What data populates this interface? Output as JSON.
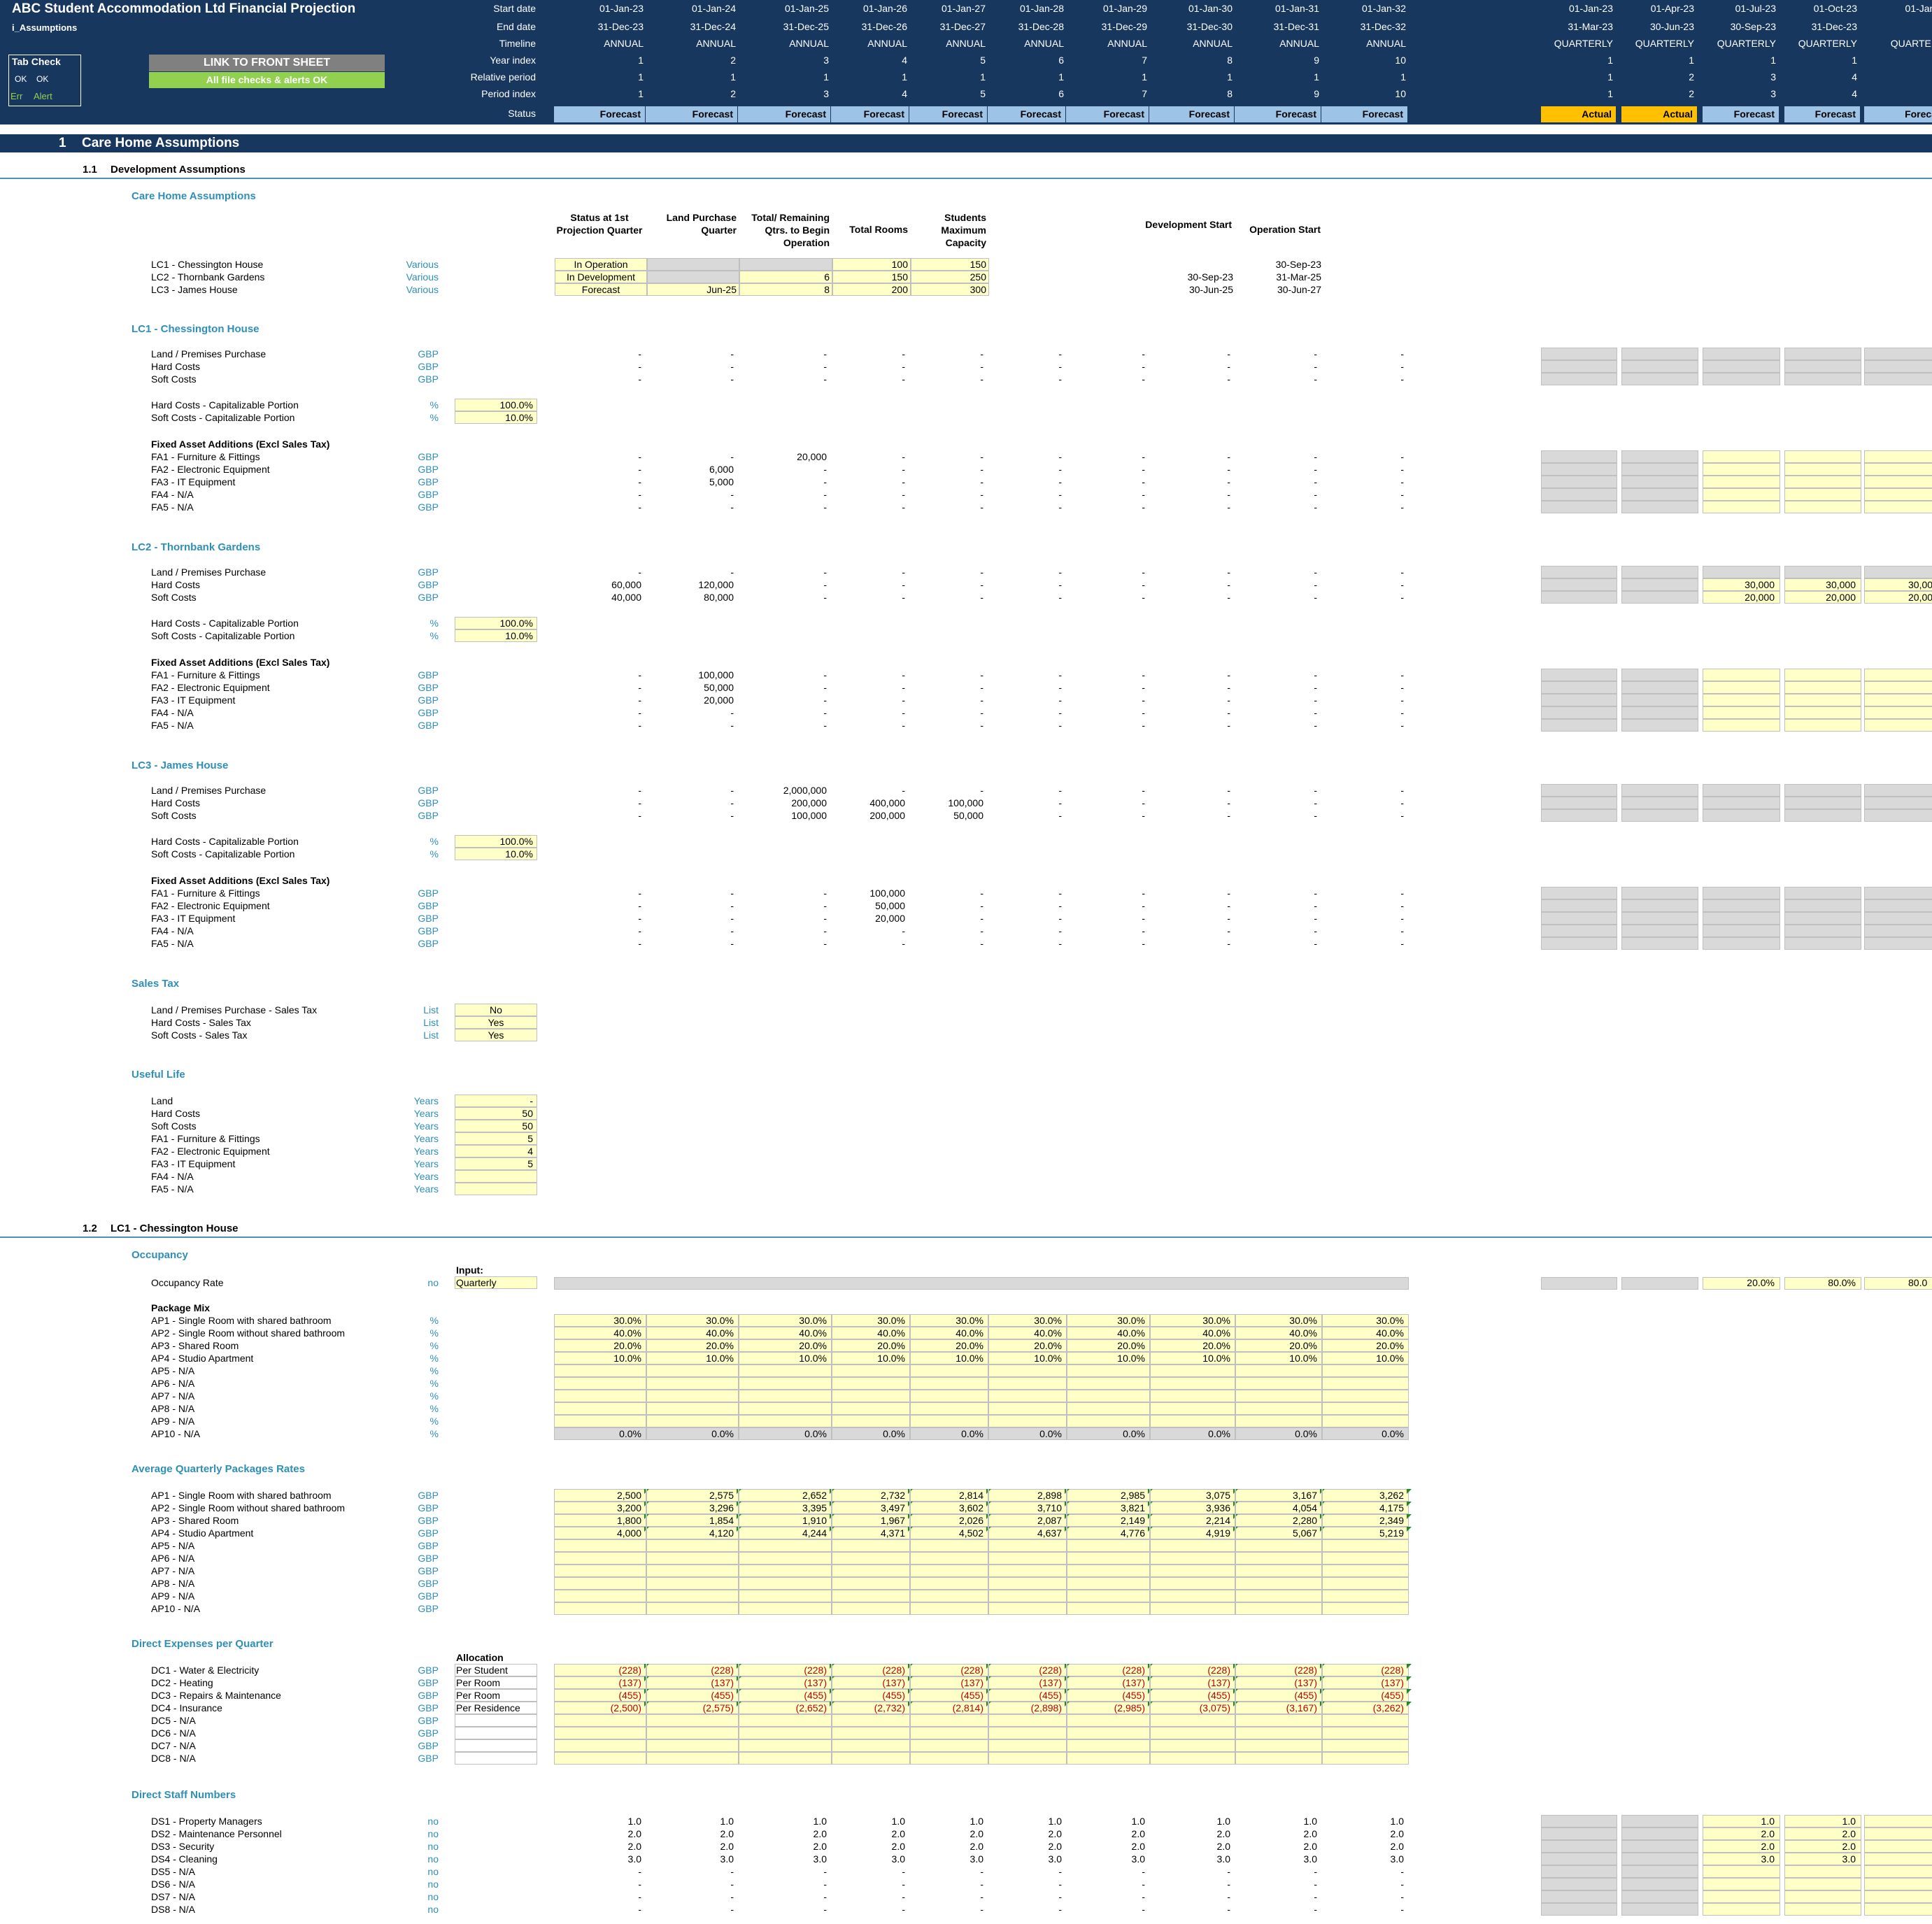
{
  "header": {
    "title": "ABC Student Accommodation Ltd Financial Projection",
    "sheet": "i_Assumptions",
    "row_labels": [
      "Start date",
      "End date",
      "Timeline",
      "Year index",
      "Relative period",
      "Period index",
      "Status"
    ],
    "tab_check": "Tab Check",
    "ok1": "OK",
    "ok2": "OK",
    "err": "Err",
    "alert": "Alert",
    "link_button": "LINK TO FRONT SHEET",
    "checks_ok": "All file checks & alerts OK"
  },
  "annual": {
    "start": [
      "01-Jan-23",
      "01-Jan-24",
      "01-Jan-25",
      "01-Jan-26",
      "01-Jan-27",
      "01-Jan-28",
      "01-Jan-29",
      "01-Jan-30",
      "01-Jan-31",
      "01-Jan-32"
    ],
    "end": [
      "31-Dec-23",
      "31-Dec-24",
      "31-Dec-25",
      "31-Dec-26",
      "31-Dec-27",
      "31-Dec-28",
      "31-Dec-29",
      "31-Dec-30",
      "31-Dec-31",
      "31-Dec-32"
    ],
    "timeline": "ANNUAL",
    "year_index": [
      "1",
      "2",
      "3",
      "4",
      "5",
      "6",
      "7",
      "8",
      "9",
      "10"
    ],
    "relative": "1",
    "period_index": [
      "1",
      "2",
      "3",
      "4",
      "5",
      "6",
      "7",
      "8",
      "9",
      "10"
    ],
    "status": "Forecast"
  },
  "quarterly": {
    "start": [
      "01-Jan-23",
      "01-Apr-23",
      "01-Jul-23",
      "01-Oct-23",
      "01-Jan-"
    ],
    "end": [
      "31-Mar-23",
      "30-Jun-23",
      "30-Sep-23",
      "31-Dec-23",
      ""
    ],
    "timeline": [
      "QUARTERLY",
      "QUARTERLY",
      "QUARTERLY",
      "QUARTERLY",
      "QUARTER"
    ],
    "year_index": [
      "1",
      "1",
      "1",
      "1",
      ""
    ],
    "relative": [
      "1",
      "2",
      "3",
      "4",
      ""
    ],
    "period_index": [
      "1",
      "2",
      "3",
      "4",
      ""
    ],
    "status": [
      "Actual",
      "Actual",
      "Forecast",
      "Forecast",
      "Foreca"
    ]
  },
  "section1": {
    "number": "1",
    "title": "Care Home Assumptions"
  },
  "s11": {
    "number": "1.1",
    "title": "Development Assumptions"
  },
  "s12": {
    "number": "1.2",
    "title": "LC1 - Chessington House"
  },
  "care_home": {
    "title": "Care Home Assumptions",
    "cols": [
      "Status at 1st Projection Quarter",
      "Land Purchase Quarter",
      "Total/ Remaining Qtrs. to Begin Operation",
      "Total Rooms",
      "Students Maximum Capacity",
      "Development Start",
      "Operation Start"
    ],
    "rows": [
      {
        "label": "LC1 - Chessington House",
        "unit": "Various",
        "status": "In Operation",
        "land": "",
        "qtrs": "",
        "rooms": "100",
        "cap": "150",
        "dev": "",
        "op": "30-Sep-23"
      },
      {
        "label": "LC2 - Thornbank Gardens",
        "unit": "Various",
        "status": "In Development",
        "land": "",
        "qtrs": "6",
        "rooms": "150",
        "cap": "250",
        "dev": "30-Sep-23",
        "op": "31-Mar-25"
      },
      {
        "label": "LC3 - James House",
        "unit": "Various",
        "status": "Forecast",
        "land": "Jun-25",
        "qtrs": "8",
        "rooms": "200",
        "cap": "300",
        "dev": "30-Jun-25",
        "op": "30-Jun-27"
      }
    ]
  },
  "lc1": {
    "title": "LC1 - Chessington House",
    "costs": [
      {
        "label": "Land / Premises Purchase",
        "unit": "GBP"
      },
      {
        "label": "Hard Costs",
        "unit": "GBP"
      },
      {
        "label": "Soft Costs",
        "unit": "GBP"
      }
    ],
    "cap": [
      {
        "label": "Hard Costs - Capitalizable Portion",
        "unit": "%",
        "value": "100.0%"
      },
      {
        "label": "Soft Costs - Capitalizable Portion",
        "unit": "%",
        "value": "10.0%"
      }
    ],
    "fa_title": "Fixed Asset Additions (Excl Sales Tax)",
    "fa": [
      {
        "label": "FA1 - Furniture & Fittings",
        "unit": "GBP"
      },
      {
        "label": "FA2 - Electronic Equipment",
        "unit": "GBP"
      },
      {
        "label": "FA3 - IT Equipment",
        "unit": "GBP"
      },
      {
        "label": "FA4 - N/A",
        "unit": "GBP"
      },
      {
        "label": "FA5 - N/A",
        "unit": "GBP"
      }
    ]
  },
  "lc2": {
    "title": "LC2 - Thornbank Gardens",
    "q_hard": "30,000",
    "q_soft": "20,000",
    "q_hard_cut": "30,00",
    "q_soft_cut": "20,00"
  },
  "lc3": {
    "title": "LC3 - James House"
  },
  "sales_tax": {
    "title": "Sales Tax",
    "rows": [
      {
        "label": "Land / Premises Purchase - Sales Tax",
        "unit": "List",
        "value": "No"
      },
      {
        "label": "Hard Costs - Sales Tax",
        "unit": "List",
        "value": "Yes"
      },
      {
        "label": "Soft Costs - Sales Tax",
        "unit": "List",
        "value": "Yes"
      }
    ]
  },
  "useful_life": {
    "title": "Useful Life",
    "rows": [
      {
        "label": "Land",
        "unit": "Years",
        "value": "-"
      },
      {
        "label": "Hard Costs",
        "unit": "Years",
        "value": "50"
      },
      {
        "label": "Soft Costs",
        "unit": "Years",
        "value": "50"
      },
      {
        "label": "FA1 - Furniture & Fittings",
        "unit": "Years",
        "value": "5"
      },
      {
        "label": "FA2 - Electronic Equipment",
        "unit": "Years",
        "value": "4"
      },
      {
        "label": "FA3 - IT Equipment",
        "unit": "Years",
        "value": "5"
      },
      {
        "label": "FA4 - N/A",
        "unit": "Years",
        "value": ""
      },
      {
        "label": "FA5 - N/A",
        "unit": "Years",
        "value": ""
      }
    ]
  },
  "occupancy": {
    "title": "Occupancy",
    "input_label": "Input:",
    "rate_label": "Occupancy Rate",
    "rate_unit": "no",
    "rate_input": "Quarterly",
    "q_vals": [
      "20.0%",
      "80.0%",
      "80.0"
    ],
    "pkg_title": "Package Mix",
    "unit": "%",
    "pkgs": [
      "AP1 - Single Room with shared bathroom",
      "AP2 - Single Room without shared bathroom",
      "AP3 - Shared Room",
      "AP4 - Studio Apartment",
      "AP5 - N/A",
      "AP6 - N/A",
      "AP7 - N/A",
      "AP8 - N/A",
      "AP9 - N/A",
      "AP10 - N/A"
    ],
    "mix": [
      "30.0%",
      "40.0%",
      "20.0%",
      "10.0%"
    ],
    "ap10": "0.0%"
  },
  "rates": {
    "title": "Average Quarterly Packages Rates",
    "unit": "GBP",
    "values": [
      [
        "2,500",
        "2,575",
        "2,652",
        "2,732",
        "2,814",
        "2,898",
        "2,985",
        "3,075",
        "3,167",
        "3,262"
      ],
      [
        "3,200",
        "3,296",
        "3,395",
        "3,497",
        "3,602",
        "3,710",
        "3,821",
        "3,936",
        "4,054",
        "4,175"
      ],
      [
        "1,800",
        "1,854",
        "1,910",
        "1,967",
        "2,026",
        "2,087",
        "2,149",
        "2,214",
        "2,280",
        "2,349"
      ],
      [
        "4,000",
        "4,120",
        "4,244",
        "4,371",
        "4,502",
        "4,637",
        "4,776",
        "4,919",
        "5,067",
        "5,219"
      ]
    ]
  },
  "direct_exp": {
    "title": "Direct Expenses per Quarter",
    "alloc_label": "Allocation",
    "unit": "GBP",
    "rows": [
      {
        "label": "DC1 - Water & Electricity",
        "alloc": "Per Student",
        "v": "(228)"
      },
      {
        "label": "DC2 - Heating",
        "alloc": "Per Room",
        "v": "(137)"
      },
      {
        "label": "DC3 - Repairs & Maintenance",
        "alloc": "Per Room",
        "v": "(455)"
      },
      {
        "label": "DC4 - Insurance",
        "alloc": "Per Residence",
        "v": ""
      },
      {
        "label": "DC5 - N/A",
        "alloc": "",
        "v": ""
      },
      {
        "label": "DC6 - N/A",
        "alloc": "",
        "v": ""
      },
      {
        "label": "DC7 - N/A",
        "alloc": "",
        "v": ""
      },
      {
        "label": "DC8 - N/A",
        "alloc": "",
        "v": ""
      }
    ],
    "insurance": [
      "(2,500)",
      "(2,575)",
      "(2,652)",
      "(2,732)",
      "(2,814)",
      "(2,898)",
      "(2,985)",
      "(3,075)",
      "(3,167)",
      "(3,262)"
    ]
  },
  "staff": {
    "title": "Direct Staff Numbers",
    "unit": "no",
    "rows": [
      {
        "label": "DS1 - Property Managers",
        "v": "1.0"
      },
      {
        "label": "DS2 - Maintenance Personnel",
        "v": "2.0"
      },
      {
        "label": "DS3 - Security",
        "v": "2.0"
      },
      {
        "label": "DS4 - Cleaning",
        "v": "3.0"
      },
      {
        "label": "DS5 - N/A",
        "v": "-"
      },
      {
        "label": "DS6 - N/A",
        "v": "-"
      },
      {
        "label": "DS7 - N/A",
        "v": "-"
      },
      {
        "label": "DS8 - N/A",
        "v": "-"
      }
    ]
  },
  "dash": "-",
  "values": {
    "lc1_fa": [
      [
        "-",
        "-",
        "20,000",
        "-",
        "-",
        "-",
        "-",
        "-",
        "-",
        "-"
      ],
      [
        "-",
        "6,000",
        "-",
        "-",
        "-",
        "-",
        "-",
        "-",
        "-",
        "-"
      ],
      [
        "-",
        "5,000",
        "-",
        "-",
        "-",
        "-",
        "-",
        "-",
        "-",
        "-"
      ],
      [
        "-",
        "-",
        "-",
        "-",
        "-",
        "-",
        "-",
        "-",
        "-",
        "-"
      ],
      [
        "-",
        "-",
        "-",
        "-",
        "-",
        "-",
        "-",
        "-",
        "-",
        "-"
      ]
    ],
    "lc2_costs": [
      [
        "-",
        "-",
        "-",
        "-",
        "-",
        "-",
        "-",
        "-",
        "-",
        "-"
      ],
      [
        "60,000",
        "120,000",
        "-",
        "-",
        "-",
        "-",
        "-",
        "-",
        "-",
        "-"
      ],
      [
        "40,000",
        "80,000",
        "-",
        "-",
        "-",
        "-",
        "-",
        "-",
        "-",
        "-"
      ]
    ],
    "lc2_fa": [
      [
        "-",
        "100,000",
        "-",
        "-",
        "-",
        "-",
        "-",
        "-",
        "-",
        "-"
      ],
      [
        "-",
        "50,000",
        "-",
        "-",
        "-",
        "-",
        "-",
        "-",
        "-",
        "-"
      ],
      [
        "-",
        "20,000",
        "-",
        "-",
        "-",
        "-",
        "-",
        "-",
        "-",
        "-"
      ],
      [
        "-",
        "-",
        "-",
        "-",
        "-",
        "-",
        "-",
        "-",
        "-",
        "-"
      ],
      [
        "-",
        "-",
        "-",
        "-",
        "-",
        "-",
        "-",
        "-",
        "-",
        "-"
      ]
    ],
    "lc3_costs": [
      [
        "-",
        "-",
        "2,000,000",
        "-",
        "-",
        "-",
        "-",
        "-",
        "-",
        "-"
      ],
      [
        "-",
        "-",
        "200,000",
        "400,000",
        "100,000",
        "-",
        "-",
        "-",
        "-",
        "-"
      ],
      [
        "-",
        "-",
        "100,000",
        "200,000",
        "50,000",
        "-",
        "-",
        "-",
        "-",
        "-"
      ]
    ],
    "lc3_fa": [
      [
        "-",
        "-",
        "-",
        "100,000",
        "-",
        "-",
        "-",
        "-",
        "-",
        "-"
      ],
      [
        "-",
        "-",
        "-",
        "50,000",
        "-",
        "-",
        "-",
        "-",
        "-",
        "-"
      ],
      [
        "-",
        "-",
        "-",
        "20,000",
        "-",
        "-",
        "-",
        "-",
        "-",
        "-"
      ],
      [
        "-",
        "-",
        "-",
        "-",
        "-",
        "-",
        "-",
        "-",
        "-",
        "-"
      ],
      [
        "-",
        "-",
        "-",
        "-",
        "-",
        "-",
        "-",
        "-",
        "-",
        "-"
      ]
    ]
  }
}
